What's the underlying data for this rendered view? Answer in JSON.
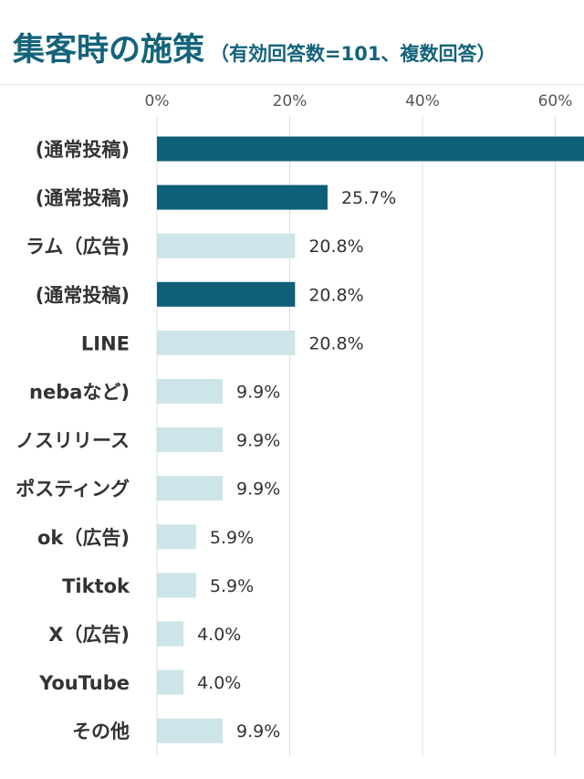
{
  "title": "集客時の施策",
  "subtitle": "（有効回答数=101、複数回答）",
  "colors": {
    "title": "#14637a",
    "bar_highlight": "#0f5f78",
    "bar_normal": "#cde4e8",
    "grid": "#dcdcdc",
    "text": "#333333"
  },
  "chart_data": {
    "type": "bar",
    "orientation": "horizontal",
    "title": "集客時の施策",
    "subtitle": "（有効回答数=101、複数回答）",
    "xlim": [
      0,
      65
    ],
    "x_ticks": [
      "0%",
      "20%",
      "40%",
      "60%"
    ],
    "x_tick_values": [
      0,
      20,
      40,
      60
    ],
    "grid": true,
    "categories": [
      "(通常投稿)",
      "(通常投稿)",
      "ラム（広告)",
      "(通常投稿)",
      "LINE",
      "nebaなど)",
      "ノスリリース",
      "ポスティング",
      "ok（広告)",
      "Tiktok",
      "X（広告)",
      "YouTube",
      "その他"
    ],
    "values": [
      64.4,
      25.7,
      20.8,
      20.8,
      20.8,
      9.9,
      9.9,
      9.9,
      5.9,
      5.9,
      4.0,
      4.0,
      9.9
    ],
    "value_labels": [
      "",
      "25.7%",
      "20.8%",
      "20.8%",
      "20.8%",
      "9.9%",
      "9.9%",
      "9.9%",
      "5.9%",
      "5.9%",
      "4.0%",
      "4.0%",
      "9.9%"
    ],
    "highlighted": [
      true,
      true,
      false,
      true,
      false,
      false,
      false,
      false,
      false,
      false,
      false,
      false,
      false
    ]
  }
}
